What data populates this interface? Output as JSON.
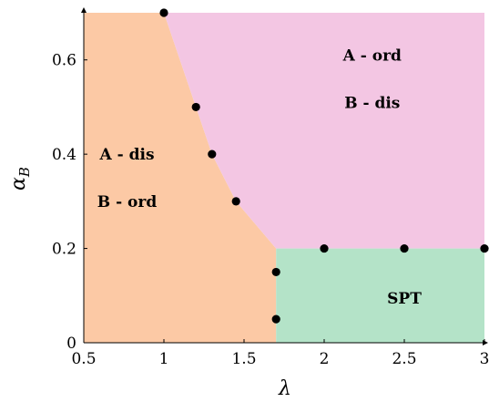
{
  "chart_data": {
    "type": "scatter",
    "title": "",
    "xlabel": "λ",
    "ylabel": "α",
    "ylabel_subscript": "B",
    "xlim": [
      0.5,
      3.0
    ],
    "ylim": [
      0.0,
      0.7
    ],
    "x_ticks": [
      0.5,
      1.0,
      1.5,
      2.0,
      2.5,
      3.0
    ],
    "x_tick_labels": [
      "0.5",
      "1",
      "1.5",
      "2",
      "2.5",
      "3"
    ],
    "y_ticks": [
      0.0,
      0.2,
      0.4,
      0.6
    ],
    "y_tick_labels": [
      "0",
      "0.2",
      "0.4",
      "0.6"
    ],
    "grid": false,
    "regions": [
      {
        "id": "a-dis-b-ord",
        "color": "#fcc9a5",
        "boundary": [
          [
            0.5,
            0.0
          ],
          [
            1.7,
            0.0
          ],
          [
            1.7,
            0.2
          ],
          [
            1.45,
            0.3
          ],
          [
            1.3,
            0.4
          ],
          [
            1.2,
            0.5
          ],
          [
            1.0,
            0.7
          ],
          [
            0.5,
            0.7
          ]
        ],
        "labels": [
          "A - dis",
          "B - ord"
        ],
        "label_at": [
          0.77,
          0.35
        ]
      },
      {
        "id": "a-ord-b-dis",
        "color": "#f3c6e3",
        "boundary": [
          [
            1.0,
            0.7
          ],
          [
            3.0,
            0.7
          ],
          [
            3.0,
            0.2
          ],
          [
            1.7,
            0.2
          ],
          [
            1.45,
            0.3
          ],
          [
            1.3,
            0.4
          ],
          [
            1.2,
            0.5
          ]
        ],
        "labels": [
          "A - ord",
          "B - dis"
        ],
        "label_at": [
          2.3,
          0.56
        ]
      },
      {
        "id": "spt",
        "color": "#b4e3c8",
        "boundary": [
          [
            1.7,
            0.0
          ],
          [
            3.0,
            0.0
          ],
          [
            3.0,
            0.2
          ],
          [
            1.7,
            0.2
          ]
        ],
        "labels": [
          "SPT"
        ],
        "label_at": [
          2.5,
          0.095
        ]
      }
    ],
    "series": [
      {
        "marker_color": "#000000",
        "points": [
          [
            1.0,
            0.7
          ],
          [
            1.2,
            0.5
          ],
          [
            1.3,
            0.4
          ],
          [
            1.45,
            0.3
          ],
          [
            1.7,
            0.15
          ],
          [
            1.7,
            0.05
          ],
          [
            2.0,
            0.2
          ],
          [
            2.5,
            0.2
          ],
          [
            3.0,
            0.2
          ]
        ]
      }
    ]
  }
}
